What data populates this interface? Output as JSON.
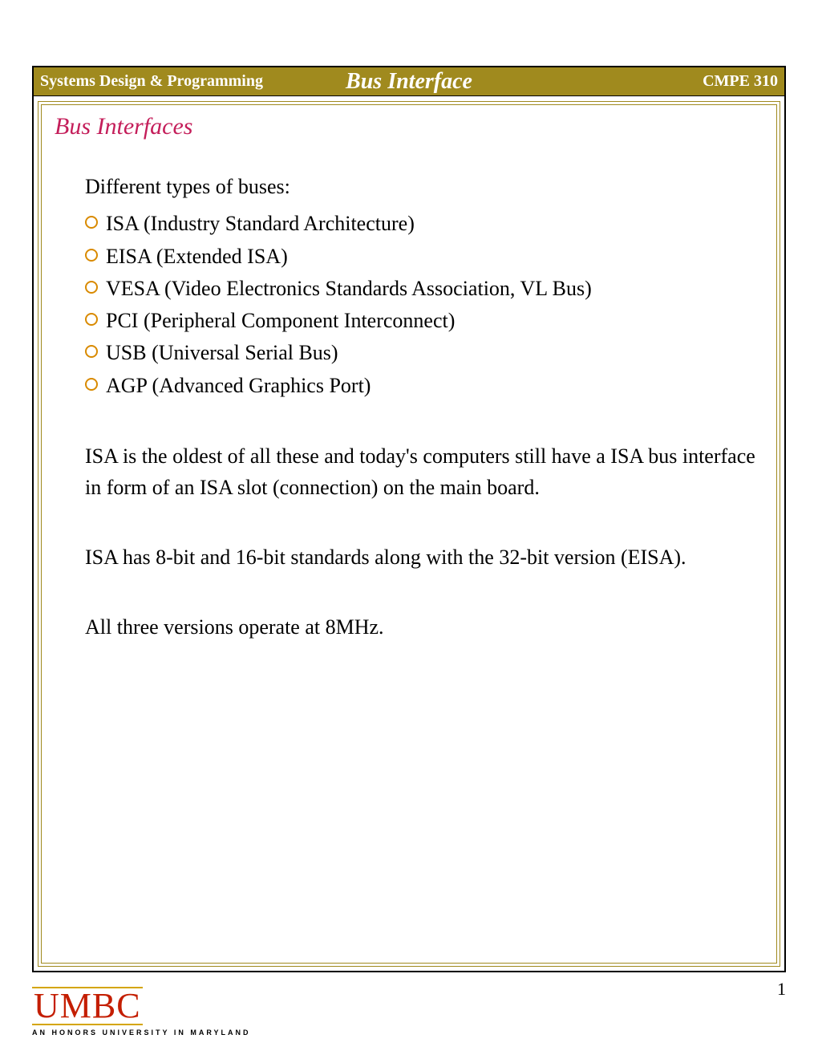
{
  "header": {
    "left": "Systems Design & Programming",
    "center": "Bus Interface",
    "right": "CMPE 310",
    "bar_color": "#a08a1e",
    "text_color": "#ffffff"
  },
  "section_title": {
    "text": "Bus Interfaces",
    "color": "#c41e5a",
    "fontsize": 30
  },
  "intro": "Different types of buses:",
  "bullets": [
    "ISA (Industry Standard Architecture)",
    "EISA (Extended ISA)",
    "VESA (Video Electronics Standards Association, VL Bus)",
    "PCI (Peripheral Component Interconnect)",
    "USB (Universal Serial Bus)",
    "AGP (Advanced Graphics Port)"
  ],
  "bullet_style": {
    "ring_color": "#d98a00",
    "ring_width": 2,
    "diameter": 16
  },
  "paragraphs": [
    "ISA is the oldest of all these and today's computers still have a ISA bus interface in form of an ISA slot (connection) on the main board.",
    "ISA has 8-bit and 16-bit standards along with the 32-bit version (EISA).",
    "All three versions operate at 8MHz."
  ],
  "footer": {
    "page_number": "1",
    "logo_text": "UMBC",
    "logo_tagline": "AN HONORS UNIVERSITY IN MARYLAND",
    "logo_color": "#c41e00",
    "logo_rule_color": "#d4a500"
  },
  "frame": {
    "outer_border_color": "#000000",
    "inner_border_color": "#a08a1e"
  },
  "body_font": {
    "family": "Times New Roman",
    "size": 26,
    "color": "#000000"
  }
}
